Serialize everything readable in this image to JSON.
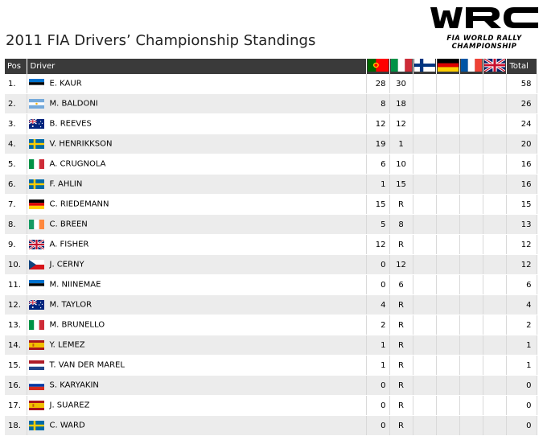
{
  "title": "2011 FIA Drivers’ Championship Standings",
  "logo": {
    "text": "FIA WORLD RALLY CHAMPIONSHIP"
  },
  "columns": {
    "pos": "Pos",
    "driver": "Driver",
    "total": "Total"
  },
  "rally_flags": [
    "portugal",
    "italy",
    "finland",
    "germany",
    "france",
    "uk"
  ],
  "colors": {
    "header_bg": "#3a3a3a",
    "row_alt": "#ececec"
  },
  "rows": [
    {
      "pos": "1.",
      "flag": "estonia",
      "driver": "E. KAUR",
      "r1": "28",
      "r2": "30",
      "total": "58"
    },
    {
      "pos": "2.",
      "flag": "argentina",
      "driver": "M. BALDONI",
      "r1": "8",
      "r2": "18",
      "total": "26"
    },
    {
      "pos": "3.",
      "flag": "australia",
      "driver": "B. REEVES",
      "r1": "12",
      "r2": "12",
      "total": "24"
    },
    {
      "pos": "4.",
      "flag": "sweden",
      "driver": "V. HENRIKKSON",
      "r1": "19",
      "r2": "1",
      "total": "20"
    },
    {
      "pos": "5.",
      "flag": "italy",
      "driver": "A. CRUGNOLA",
      "r1": "6",
      "r2": "10",
      "total": "16"
    },
    {
      "pos": "6.",
      "flag": "sweden",
      "driver": "F. AHLIN",
      "r1": "1",
      "r2": "15",
      "total": "16"
    },
    {
      "pos": "7.",
      "flag": "germany",
      "driver": "C. RIEDEMANN",
      "r1": "15",
      "r2": "R",
      "total": "15"
    },
    {
      "pos": "8.",
      "flag": "ireland",
      "driver": "C. BREEN",
      "r1": "5",
      "r2": "8",
      "total": "13"
    },
    {
      "pos": "9.",
      "flag": "uk",
      "driver": "A. FISHER",
      "r1": "12",
      "r2": "R",
      "total": "12"
    },
    {
      "pos": "10.",
      "flag": "czech",
      "driver": "J. CERNY",
      "r1": "0",
      "r2": "12",
      "total": "12"
    },
    {
      "pos": "11.",
      "flag": "estonia",
      "driver": "M. NIINEMAE",
      "r1": "0",
      "r2": "6",
      "total": "6"
    },
    {
      "pos": "12.",
      "flag": "australia",
      "driver": "M. TAYLOR",
      "r1": "4",
      "r2": "R",
      "total": "4"
    },
    {
      "pos": "13.",
      "flag": "italy",
      "driver": "M. BRUNELLO",
      "r1": "2",
      "r2": "R",
      "total": "2"
    },
    {
      "pos": "14.",
      "flag": "spain",
      "driver": "Y. LEMEZ",
      "r1": "1",
      "r2": "R",
      "total": "1"
    },
    {
      "pos": "15.",
      "flag": "netherlands",
      "driver": "T. VAN DER MAREL",
      "r1": "1",
      "r2": "R",
      "total": "1"
    },
    {
      "pos": "16.",
      "flag": "russia",
      "driver": "S. KARYAKIN",
      "r1": "0",
      "r2": "R",
      "total": "0"
    },
    {
      "pos": "17.",
      "flag": "spain",
      "driver": "J. SUAREZ",
      "r1": "0",
      "r2": "R",
      "total": "0"
    },
    {
      "pos": "18.",
      "flag": "sweden",
      "driver": "C. WARD",
      "r1": "0",
      "r2": "R",
      "total": "0"
    }
  ]
}
